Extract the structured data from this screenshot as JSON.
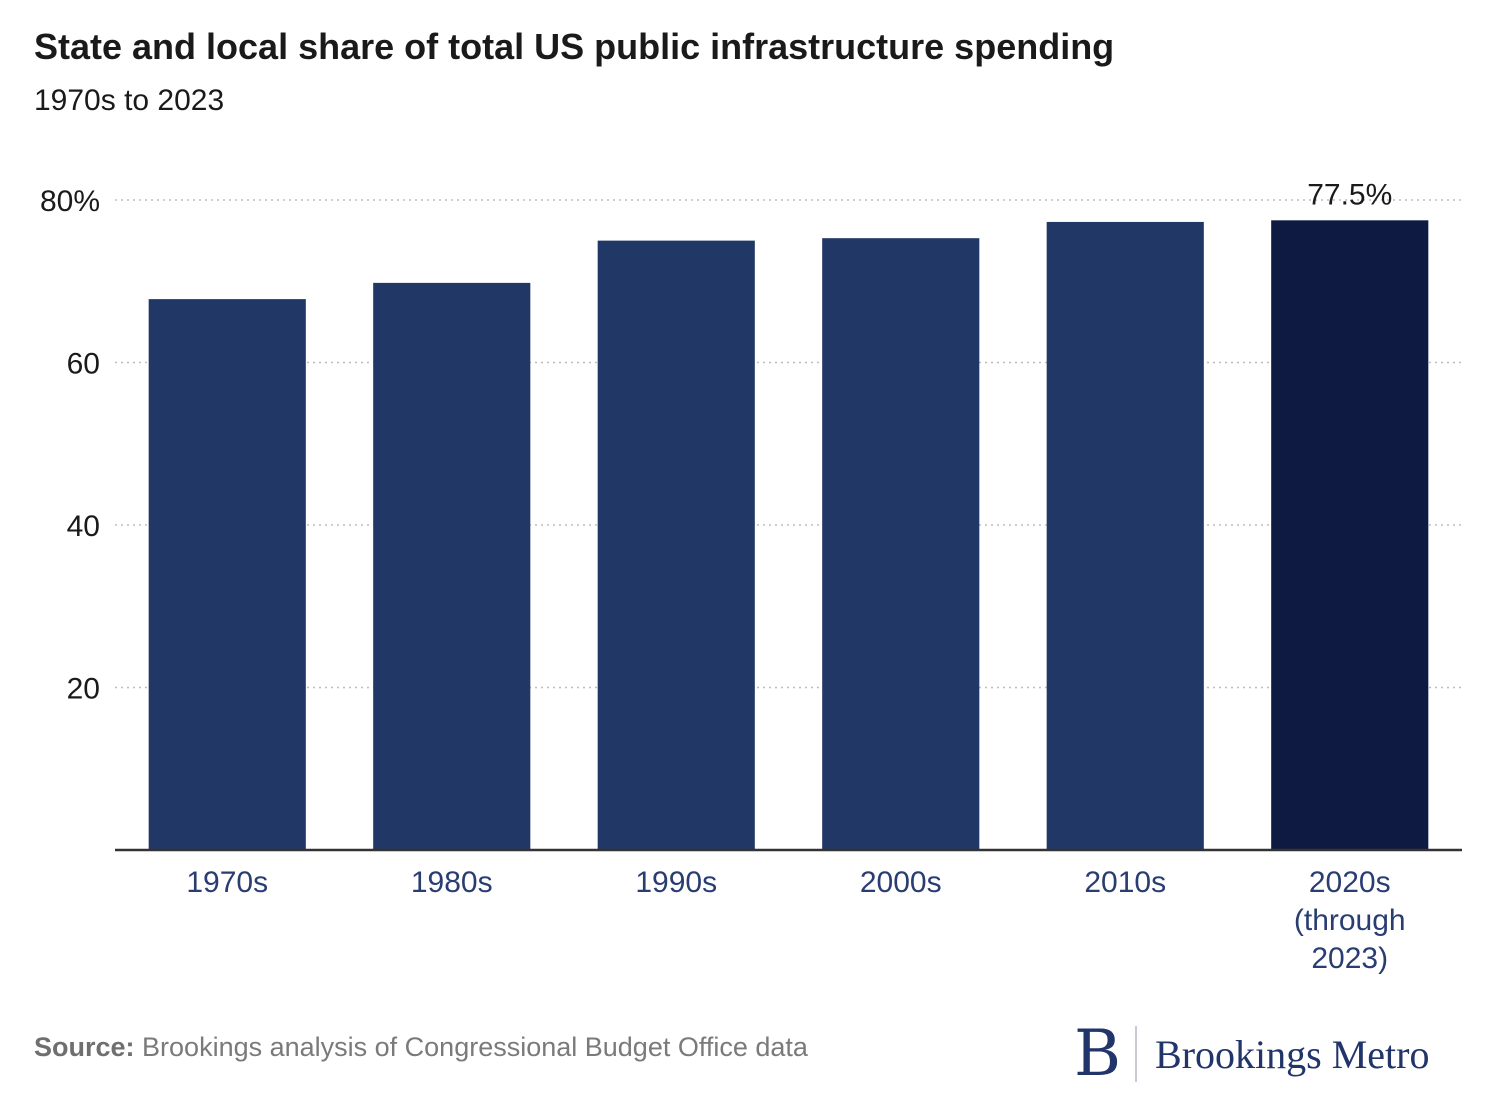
{
  "header": {
    "title": "State and local share of total US public infrastructure spending",
    "subtitle": "1970s to 2023"
  },
  "chart_data": {
    "type": "bar",
    "title": "State and local share of total US public infrastructure spending",
    "subtitle": "1970s to 2023",
    "categories": [
      [
        "1970s"
      ],
      [
        "1980s"
      ],
      [
        "1990s"
      ],
      [
        "2000s"
      ],
      [
        "2010s"
      ],
      [
        "2020s",
        "(through",
        "2023)"
      ]
    ],
    "values": [
      67.8,
      69.8,
      75.0,
      75.3,
      77.3,
      77.5
    ],
    "ylim": [
      0,
      80
    ],
    "yticks": [
      20,
      40,
      60,
      80
    ],
    "ytick_labels": [
      "20",
      "40",
      "60",
      "80%"
    ],
    "xlabel": "",
    "ylabel": "",
    "grid": true,
    "annotations": [
      {
        "category_index": 5,
        "text": "77.5%"
      }
    ],
    "colors": {
      "bar": "#213766",
      "highlight": "#0e1a42",
      "axis": "#333333",
      "grid": "#bdbdbd",
      "xtick": "#2a3d73",
      "text": "#1a1a1a"
    },
    "highlight_index": 5
  },
  "footer": {
    "source_label": "Source:",
    "source_text": " Brookings analysis of Congressional Budget Office data"
  },
  "logo": {
    "mark": "B",
    "text": "Brookings Metro",
    "color": "#22356a"
  }
}
